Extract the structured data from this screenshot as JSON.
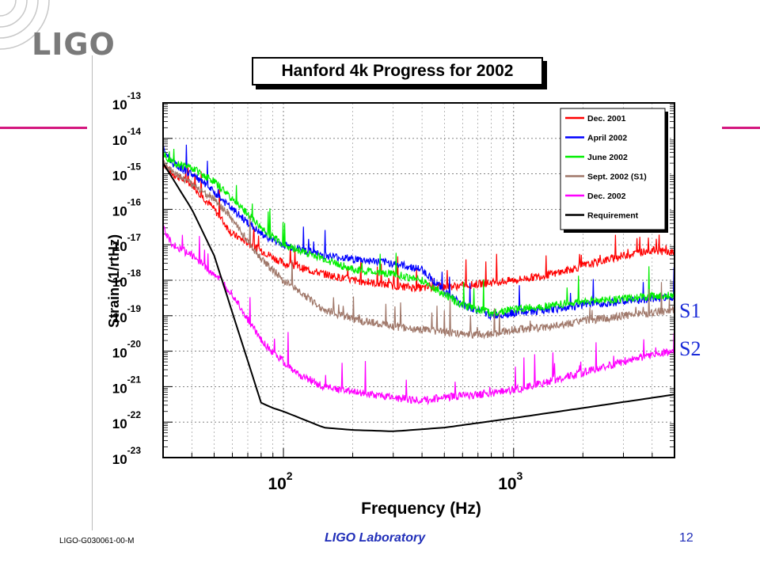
{
  "slide": {
    "logo_text": "LIGO",
    "footer_left": "LIGO-G030061-00-M",
    "footer_center": "LIGO Laboratory",
    "page_number": "12",
    "accent_color": "#d4187f",
    "run_labels": [
      "S1",
      "S2"
    ]
  },
  "chart_data": {
    "type": "line",
    "title": "Hanford 4k Progress for 2002",
    "xlabel": "Frequency (Hz)",
    "ylabel": "Strain (1/rtHz)",
    "xscale": "log",
    "yscale": "log",
    "xlim": [
      30,
      5000
    ],
    "ylim": [
      1e-23,
      1e-13
    ],
    "x_ticks": [
      {
        "value": 100,
        "base": "10",
        "exp": "2"
      },
      {
        "value": 1000,
        "base": "10",
        "exp": "3"
      }
    ],
    "y_ticks": [
      {
        "value": 1e-13,
        "base": "10",
        "exp": "-13"
      },
      {
        "value": 1e-14,
        "base": "10",
        "exp": "-14"
      },
      {
        "value": 1e-15,
        "base": "10",
        "exp": "-15"
      },
      {
        "value": 1e-16,
        "base": "10",
        "exp": "-16"
      },
      {
        "value": 1e-17,
        "base": "10",
        "exp": "-17"
      },
      {
        "value": 1e-18,
        "base": "10",
        "exp": "-18"
      },
      {
        "value": 1e-19,
        "base": "10",
        "exp": "-19"
      },
      {
        "value": 1e-20,
        "base": "10",
        "exp": "-20"
      },
      {
        "value": 1e-21,
        "base": "10",
        "exp": "-21"
      },
      {
        "value": 1e-22,
        "base": "10",
        "exp": "-22"
      },
      {
        "value": 1e-23,
        "base": "10",
        "exp": "-23"
      }
    ],
    "grid": true,
    "legend_position": "top-right",
    "series": [
      {
        "name": "Dec. 2001",
        "color": "#ff0000",
        "x": [
          30,
          33,
          40,
          50,
          60,
          80,
          100,
          150,
          200,
          300,
          400,
          600,
          1000,
          1500,
          2000,
          3000,
          4000,
          5000
        ],
        "y": [
          2e-15,
          1e-15,
          5e-16,
          1e-16,
          2e-17,
          7e-18,
          3e-18,
          1.5e-18,
          1e-18,
          7e-19,
          6e-19,
          7e-19,
          1e-18,
          1.5e-18,
          2.5e-18,
          5e-18,
          7e-18,
          6e-18
        ]
      },
      {
        "name": "April 2002",
        "color": "#0000ff",
        "x": [
          30,
          33,
          40,
          50,
          60,
          80,
          100,
          150,
          200,
          300,
          400,
          500,
          600,
          800,
          1000,
          1500,
          2000,
          3000,
          4000,
          5000
        ],
        "y": [
          5e-15,
          2e-15,
          1e-15,
          3e-16,
          1e-16,
          2e-17,
          1e-17,
          5e-18,
          4e-18,
          3e-18,
          2e-18,
          5e-19,
          2e-19,
          1e-19,
          1.2e-19,
          1.5e-19,
          2e-19,
          2.5e-19,
          3e-19,
          3.5e-19
        ]
      },
      {
        "name": "June 2002",
        "color": "#00ee00",
        "x": [
          30,
          33,
          40,
          50,
          60,
          80,
          100,
          150,
          200,
          300,
          400,
          500,
          600,
          800,
          1000,
          1500,
          2000,
          3000,
          4000,
          5000
        ],
        "y": [
          4e-15,
          2e-15,
          1.5e-15,
          6e-16,
          2e-16,
          3e-17,
          1e-17,
          4e-18,
          2e-18,
          1.5e-18,
          1e-18,
          4e-19,
          2e-19,
          1.2e-19,
          1.5e-19,
          2e-19,
          2.5e-19,
          3e-19,
          3.5e-19,
          4e-19
        ]
      },
      {
        "name": "Sept. 2002 (S1)",
        "color": "#a0786a",
        "x": [
          30,
          33,
          40,
          50,
          60,
          80,
          100,
          150,
          200,
          300,
          400,
          600,
          800,
          1000,
          1500,
          2000,
          3000,
          4000,
          5000
        ],
        "y": [
          2e-15,
          1.2e-15,
          5e-16,
          2e-16,
          5e-17,
          4e-18,
          1e-18,
          1.5e-19,
          8e-20,
          5e-20,
          4e-20,
          3e-20,
          3e-20,
          4e-20,
          5e-20,
          7e-20,
          1e-19,
          1.2e-19,
          1.5e-19
        ]
      },
      {
        "name": "Dec. 2002",
        "color": "#ff00ff",
        "x": [
          30,
          33,
          40,
          50,
          60,
          80,
          100,
          120,
          150,
          200,
          300,
          400,
          500,
          700,
          1000,
          1500,
          2000,
          3000,
          4000,
          5000
        ],
        "y": [
          3e-17,
          1e-17,
          5e-18,
          1.5e-18,
          4e-19,
          2e-20,
          5e-21,
          2e-21,
          1e-21,
          7e-22,
          5e-22,
          4e-22,
          5e-22,
          6e-22,
          8e-22,
          1.5e-21,
          2.5e-21,
          5e-21,
          8e-21,
          1e-20
        ]
      },
      {
        "name": "Requirement",
        "color": "#000000",
        "x": [
          30,
          40,
          50,
          80,
          90,
          100,
          150,
          200,
          300,
          500,
          1000,
          2000,
          5000
        ],
        "y": [
          2e-15,
          1e-16,
          5e-18,
          3.5e-22,
          2.5e-22,
          2e-22,
          7e-23,
          6e-23,
          5.5e-23,
          7e-23,
          1.3e-22,
          2.5e-22,
          6e-22
        ]
      }
    ],
    "annotations": [
      {
        "text": "S1",
        "x": 5200,
        "y": 1.5e-19
      },
      {
        "text": "S2",
        "x": 5200,
        "y": 1.5e-20
      }
    ]
  }
}
